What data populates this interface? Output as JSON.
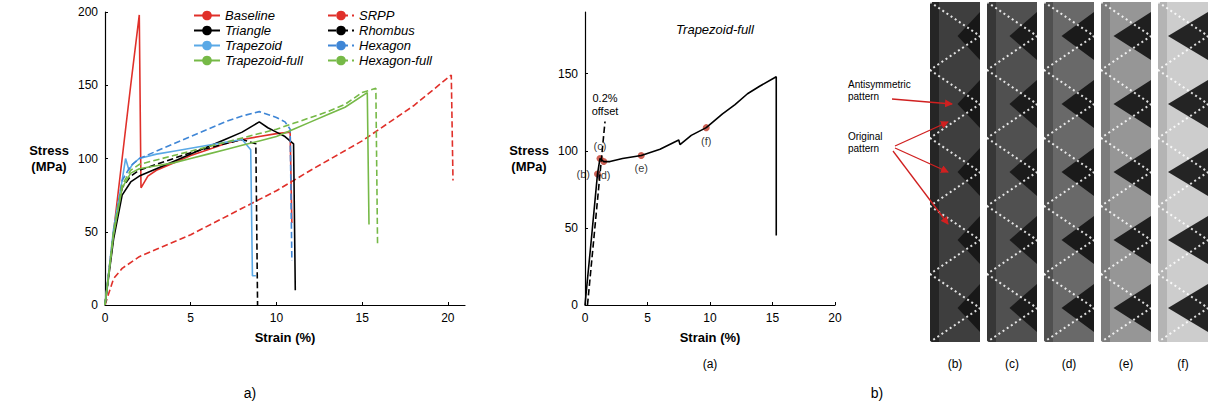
{
  "chart_data": [
    {
      "type": "line",
      "x_label": "Strain (%)",
      "y_label": "Stress (MPa)",
      "xlim": [
        0,
        21
      ],
      "xticks": [
        0,
        5,
        10,
        15,
        20
      ],
      "ylim": [
        0,
        200
      ],
      "yticks": [
        0,
        50,
        100,
        150,
        200
      ],
      "grid": false,
      "legend": "top",
      "series": [
        {
          "name": "Baseline",
          "color": "#e0302a",
          "line_style": "solid",
          "x": [
            0,
            0.5,
            1,
            1.5,
            2,
            2.1,
            2.5,
            3,
            4,
            5,
            6,
            7,
            8,
            9,
            10,
            10.8,
            10.9
          ],
          "values": [
            0,
            50,
            100,
            150,
            198,
            80,
            88,
            92,
            97,
            102,
            106,
            110,
            113,
            115,
            117,
            118,
            56
          ]
        },
        {
          "name": "SRPP",
          "color": "#e0302a",
          "line_style": "dashed",
          "x": [
            0,
            0.5,
            1,
            2,
            3,
            5,
            8,
            10,
            12,
            15,
            18,
            20.2,
            20.3
          ],
          "values": [
            0,
            18,
            25,
            33,
            38,
            48,
            66,
            78,
            92,
            112,
            136,
            157,
            85
          ]
        },
        {
          "name": "Triangle",
          "color": "#000000",
          "line_style": "solid",
          "x": [
            0,
            0.5,
            1,
            1.5,
            2,
            3,
            4,
            5,
            6,
            7,
            8,
            9,
            9.5,
            10,
            10.5,
            11,
            11.1
          ],
          "values": [
            0,
            45,
            75,
            84,
            88,
            93,
            98,
            103,
            108,
            113,
            118,
            125,
            121,
            118,
            115,
            110,
            10
          ]
        },
        {
          "name": "Rhombus",
          "color": "#000000",
          "line_style": "dashed",
          "x": [
            0,
            0.5,
            1,
            1.5,
            2,
            3,
            4,
            5,
            6,
            7,
            8,
            8.8,
            8.9
          ],
          "values": [
            0,
            48,
            80,
            88,
            92,
            96,
            100,
            104,
            107,
            110,
            113,
            110,
            0
          ]
        },
        {
          "name": "Trapezoid",
          "color": "#5aa9e6",
          "line_style": "solid",
          "x": [
            0,
            0.5,
            1,
            1.2,
            1.4,
            1.6,
            2,
            3,
            4,
            5,
            6,
            7,
            8,
            8.5,
            8.6,
            8.8
          ],
          "values": [
            0,
            52,
            85,
            100,
            92,
            96,
            100,
            103,
            105,
            107,
            109,
            111,
            113,
            106,
            20,
            20
          ]
        },
        {
          "name": "Hexagon",
          "color": "#3f86d6",
          "line_style": "dashed",
          "x": [
            0,
            0.5,
            1,
            1.5,
            2,
            3,
            4,
            5,
            6,
            7,
            8,
            9,
            10,
            10.5,
            10.8,
            10.9
          ],
          "values": [
            0,
            50,
            85,
            95,
            100,
            105,
            110,
            115,
            120,
            125,
            129,
            132,
            128,
            125,
            120,
            30
          ]
        },
        {
          "name": "Trapezoid-full",
          "color": "#76b947",
          "line_style": "solid",
          "x": [
            0,
            0.5,
            1,
            1.5,
            2,
            3,
            4,
            5,
            6,
            7,
            8,
            9,
            10,
            11,
            12,
            13,
            14,
            15.3,
            15.4
          ],
          "values": [
            0,
            48,
            80,
            90,
            93,
            95,
            97,
            100,
            103,
            106,
            109,
            112,
            115,
            120,
            125,
            130,
            135,
            145,
            55
          ]
        },
        {
          "name": "Hexagon-full",
          "color": "#76b947",
          "line_style": "dashed",
          "x": [
            0,
            0.5,
            1,
            1.5,
            2,
            3,
            4,
            5,
            6,
            7,
            8,
            9,
            10,
            11,
            12,
            13,
            14,
            15,
            15.8,
            15.9
          ],
          "values": [
            0,
            50,
            82,
            92,
            96,
            99,
            102,
            105,
            108,
            111,
            114,
            117,
            120,
            124,
            128,
            132,
            137,
            145,
            148,
            40
          ]
        }
      ]
    },
    {
      "type": "line",
      "title": "Trapezoid-full",
      "x_label": "Strain (%)",
      "y_label": "Stress (MPa)",
      "xlim": [
        0,
        20
      ],
      "xticks": [
        0,
        5,
        10,
        15,
        20
      ],
      "ylim": [
        0,
        190
      ],
      "yticks": [
        0,
        50,
        100,
        150
      ],
      "grid": false,
      "series": [
        {
          "color": "#000000",
          "line_style": "solid",
          "x": [
            0,
            0.5,
            1,
            1.2,
            1.5,
            2,
            3,
            4.5,
            6,
            7.5,
            7.6,
            8.5,
            9.7,
            11,
            12,
            13,
            14,
            15.3,
            15.3
          ],
          "values": [
            0,
            42,
            85,
            95,
            93,
            93,
            95,
            97,
            101,
            107,
            104,
            110,
            115,
            124,
            130,
            137,
            142,
            148,
            45
          ]
        },
        {
          "name": "0.2% offset",
          "color": "#000000",
          "line_style": "dashed",
          "x": [
            0.2,
            1.6
          ],
          "values": [
            0,
            119
          ]
        }
      ],
      "points": {
        "labels": [
          "(b)",
          "(c)",
          "(d)",
          "(e)",
          "(f)"
        ],
        "x": [
          1,
          1.2,
          1.5,
          4.5,
          9.7
        ],
        "values": [
          85,
          95,
          93,
          97,
          115
        ],
        "color": "#c0392b",
        "marker": "circle"
      }
    }
  ],
  "figure": {
    "panel_labels": [
      "a)",
      "b)"
    ],
    "subpanel_label": "(a)",
    "image_labels": [
      "(b)",
      "(c)",
      "(d)",
      "(e)",
      "(f)"
    ],
    "image_annotations": [
      "Antisymmetric pattern",
      "Original pattern"
    ]
  }
}
